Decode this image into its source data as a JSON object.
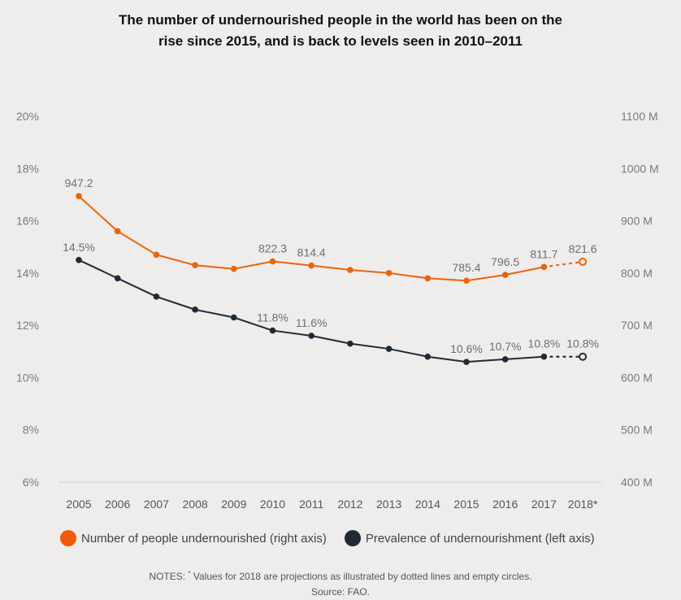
{
  "title_line1": "The number of undernourished people in the world has been on the",
  "title_line2": "rise since 2015, and is back to levels seen in 2010–2011",
  "legend": [
    {
      "label": "Number of people undernourished (right axis)",
      "color": "#e8650a"
    },
    {
      "label": "Prevalence of undernourishment (left axis)",
      "color": "#1f2a36"
    }
  ],
  "notes": {
    "prefix": "NOTES: ",
    "marker": "*",
    "text": " Values for 2018 are projections as illustrated by dotted lines and empty circles.",
    "source": "Source: FAO."
  },
  "chart_data": {
    "type": "line",
    "x": [
      "2005",
      "2006",
      "2007",
      "2008",
      "2009",
      "2010",
      "2011",
      "2012",
      "2013",
      "2014",
      "2015",
      "2016",
      "2017",
      "2018*"
    ],
    "left_axis": {
      "ticks": [
        "6%",
        "8%",
        "10%",
        "12%",
        "14%",
        "16%",
        "18%",
        "20%"
      ],
      "range": [
        6,
        20
      ]
    },
    "right_axis": {
      "ticks": [
        "400 M",
        "500 M",
        "600 M",
        "700 M",
        "800 M",
        "900 M",
        "1000 M",
        "1100 M"
      ],
      "range": [
        400,
        1100
      ]
    },
    "series": [
      {
        "name": "Number of people undernourished (right axis)",
        "axis": "right",
        "color": "#e8650a",
        "values": [
          947.2,
          880.0,
          835.0,
          815.0,
          808.0,
          822.3,
          814.4,
          806.0,
          800.0,
          790.0,
          785.4,
          796.5,
          811.7,
          821.6
        ],
        "labels": {
          "0": "947.2",
          "5": "822.3",
          "6": "814.4",
          "10": "785.4",
          "11": "796.5",
          "12": "811.7",
          "13": "821.6"
        },
        "projected_index": 13
      },
      {
        "name": "Prevalence of undernourishment (left axis)",
        "axis": "left",
        "color": "#1f2a36",
        "values": [
          14.5,
          13.8,
          13.1,
          12.6,
          12.3,
          11.8,
          11.6,
          11.3,
          11.1,
          10.8,
          10.6,
          10.7,
          10.8,
          10.8
        ],
        "labels": {
          "0": "14.5%",
          "5": "11.8%",
          "6": "11.6%",
          "10": "10.6%",
          "11": "10.7%",
          "12": "10.8%",
          "13": "10.8%"
        },
        "projected_index": 13
      }
    ]
  }
}
